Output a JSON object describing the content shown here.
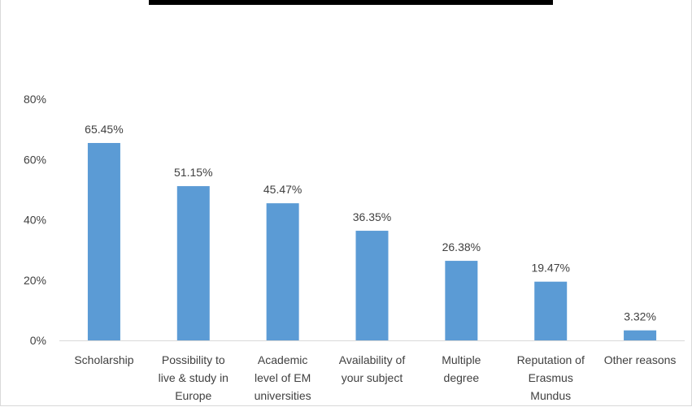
{
  "chart_data": {
    "type": "bar",
    "title": "",
    "xlabel": "",
    "ylabel": "",
    "categories": [
      [
        "Scholarship"
      ],
      [
        "Possibility to",
        "live & study in",
        "Europe"
      ],
      [
        "Academic",
        "level of EM",
        "universities"
      ],
      [
        "Availability of",
        "your subject"
      ],
      [
        "Multiple",
        "degree"
      ],
      [
        "Reputation of",
        "Erasmus",
        "Mundus"
      ],
      [
        "Other reasons"
      ]
    ],
    "values": [
      65.45,
      51.15,
      45.47,
      36.35,
      26.38,
      19.47,
      3.32
    ],
    "data_labels": [
      "65.45%",
      "51.15%",
      "45.47%",
      "36.35%",
      "26.38%",
      "19.47%",
      "3.32%"
    ],
    "ylim": [
      0,
      80
    ],
    "yticks": [
      0,
      20,
      40,
      60,
      80
    ],
    "ytick_labels": [
      "0%",
      "20%",
      "40%",
      "60%",
      "80%"
    ],
    "grid": false,
    "legend": "none",
    "colors": {
      "bar": "#5b9bd5",
      "axis": "#d9d9d9",
      "text": "#404040"
    }
  }
}
